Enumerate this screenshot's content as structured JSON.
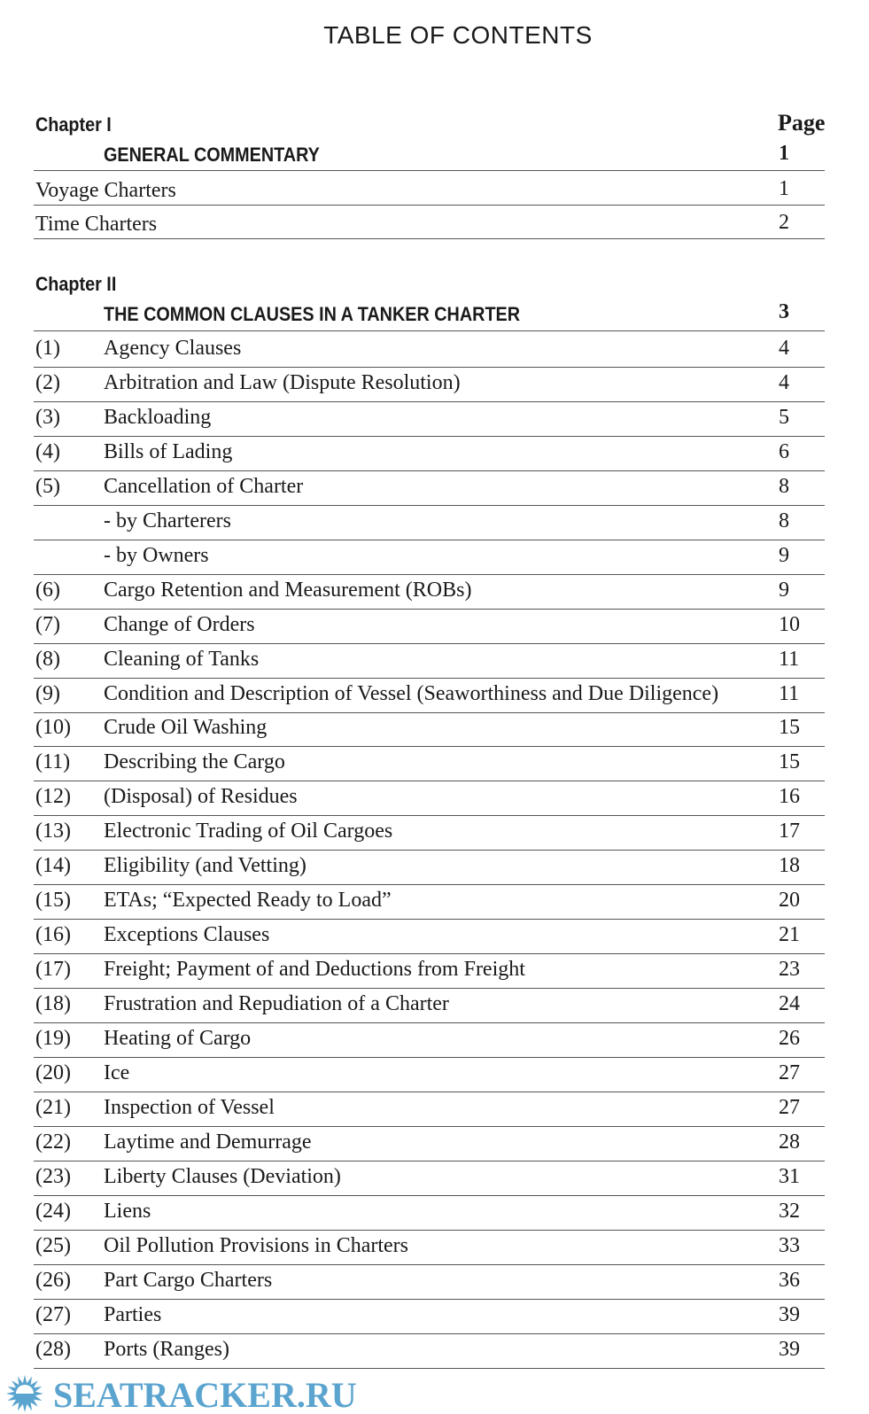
{
  "title": "TABLE OF CONTENTS",
  "page_header": "Page",
  "chapter1": {
    "label": "Chapter I",
    "heading": "GENERAL COMMENTARY",
    "heading_page": "1",
    "entries": [
      {
        "title": "Voyage Charters",
        "page": "1"
      },
      {
        "title": "Time Charters",
        "page": "2"
      }
    ]
  },
  "chapter2": {
    "label": "Chapter II",
    "heading": "THE COMMON CLAUSES IN A TANKER CHARTER",
    "heading_page": "3",
    "entries": [
      {
        "num": "(1)",
        "title": "Agency Clauses",
        "page": "4"
      },
      {
        "num": "(2)",
        "title": "Arbitration and Law (Dispute Resolution)",
        "page": "4"
      },
      {
        "num": "(3)",
        "title": "Backloading",
        "page": "5"
      },
      {
        "num": "(4)",
        "title": "Bills of Lading",
        "page": "6"
      },
      {
        "num": "(5)",
        "title": "Cancellation of Charter",
        "page": "8"
      },
      {
        "num": "",
        "title": "- by Charterers",
        "page": "8"
      },
      {
        "num": "",
        "title": "- by Owners",
        "page": "9"
      },
      {
        "num": "(6)",
        "title": "Cargo Retention and Measurement (ROBs)",
        "page": "9"
      },
      {
        "num": "(7)",
        "title": "Change of Orders",
        "page": "10"
      },
      {
        "num": "(8)",
        "title": "Cleaning of Tanks",
        "page": "11"
      },
      {
        "num": "(9)",
        "title": "Condition and Description of Vessel (Seaworthiness and Due Diligence)",
        "page": "11"
      },
      {
        "num": "(10)",
        "title": "Crude Oil Washing",
        "page": "15"
      },
      {
        "num": "(11)",
        "title": "Describing the Cargo",
        "page": "15"
      },
      {
        "num": "(12)",
        "title": "(Disposal) of Residues",
        "page": "16"
      },
      {
        "num": "(13)",
        "title": "Electronic Trading of Oil Cargoes",
        "page": "17"
      },
      {
        "num": "(14)",
        "title": "Eligibility (and Vetting)",
        "page": "18"
      },
      {
        "num": "(15)",
        "title": "ETAs; “Expected Ready to Load”",
        "page": "20"
      },
      {
        "num": "(16)",
        "title": "Exceptions Clauses",
        "page": "21"
      },
      {
        "num": "(17)",
        "title": "Freight; Payment of and Deductions from Freight",
        "page": "23"
      },
      {
        "num": "(18)",
        "title": "Frustration and Repudiation of a Charter",
        "page": "24"
      },
      {
        "num": "(19)",
        "title": "Heating of Cargo",
        "page": "26"
      },
      {
        "num": "(20)",
        "title": "Ice",
        "page": "27"
      },
      {
        "num": "(21)",
        "title": "Inspection of Vessel",
        "page": "27"
      },
      {
        "num": "(22)",
        "title": "Laytime and Demurrage",
        "page": "28"
      },
      {
        "num": "(23)",
        "title": "Liberty Clauses (Deviation)",
        "page": "31"
      },
      {
        "num": "(24)",
        "title": "Liens",
        "page": "32"
      },
      {
        "num": "(25)",
        "title": "Oil Pollution Provisions in Charters",
        "page": "33"
      },
      {
        "num": "(26)",
        "title": "Part Cargo Charters",
        "page": "36"
      },
      {
        "num": "(27)",
        "title": "Parties",
        "page": "39"
      },
      {
        "num": "(28)",
        "title": "Ports (Ranges)",
        "page": "39"
      }
    ]
  },
  "watermark": {
    "text": "SEATRACKER.RU",
    "color": "#5ba4cf"
  }
}
